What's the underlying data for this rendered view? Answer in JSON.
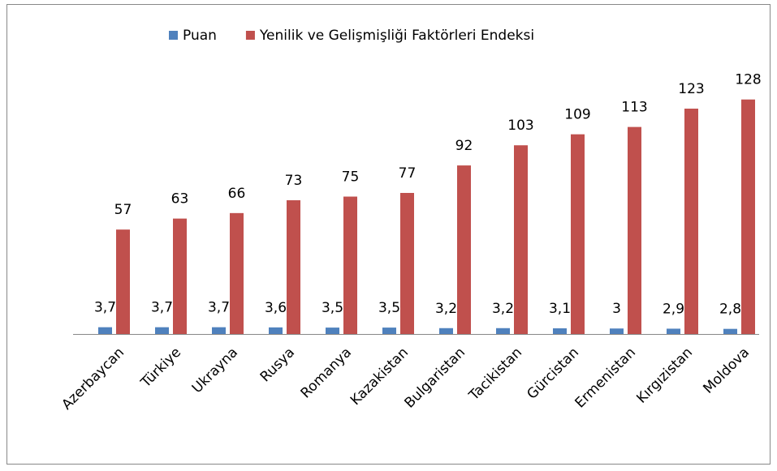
{
  "chart_data": {
    "type": "bar",
    "categories": [
      "Azerbaycan",
      "Türkiye",
      "Ukrayna",
      "Rusya",
      "Romanya",
      "Kazakistan",
      "Bulgaristan",
      "Tacikistan",
      "Gürcistan",
      "Ermenistan",
      "Kırgızistan",
      "Moldova"
    ],
    "series": [
      {
        "name": "Puan",
        "color": "#4f81bd",
        "values": [
          3.7,
          3.7,
          3.7,
          3.6,
          3.5,
          3.5,
          3.2,
          3.2,
          3.1,
          3,
          2.9,
          2.8
        ],
        "value_labels": [
          "3,7",
          "3,7",
          "3,7",
          "3,6",
          "3,5",
          "3,5",
          "3,2",
          "3,2",
          "3,1",
          "3",
          "2,9",
          "2,8"
        ]
      },
      {
        "name": "Yenilik ve Gelişmişliği Faktörleri Endeksi",
        "color": "#c0504d",
        "values": [
          57,
          63,
          66,
          73,
          75,
          77,
          92,
          103,
          109,
          113,
          123,
          128
        ]
      }
    ],
    "legend": "top"
  }
}
